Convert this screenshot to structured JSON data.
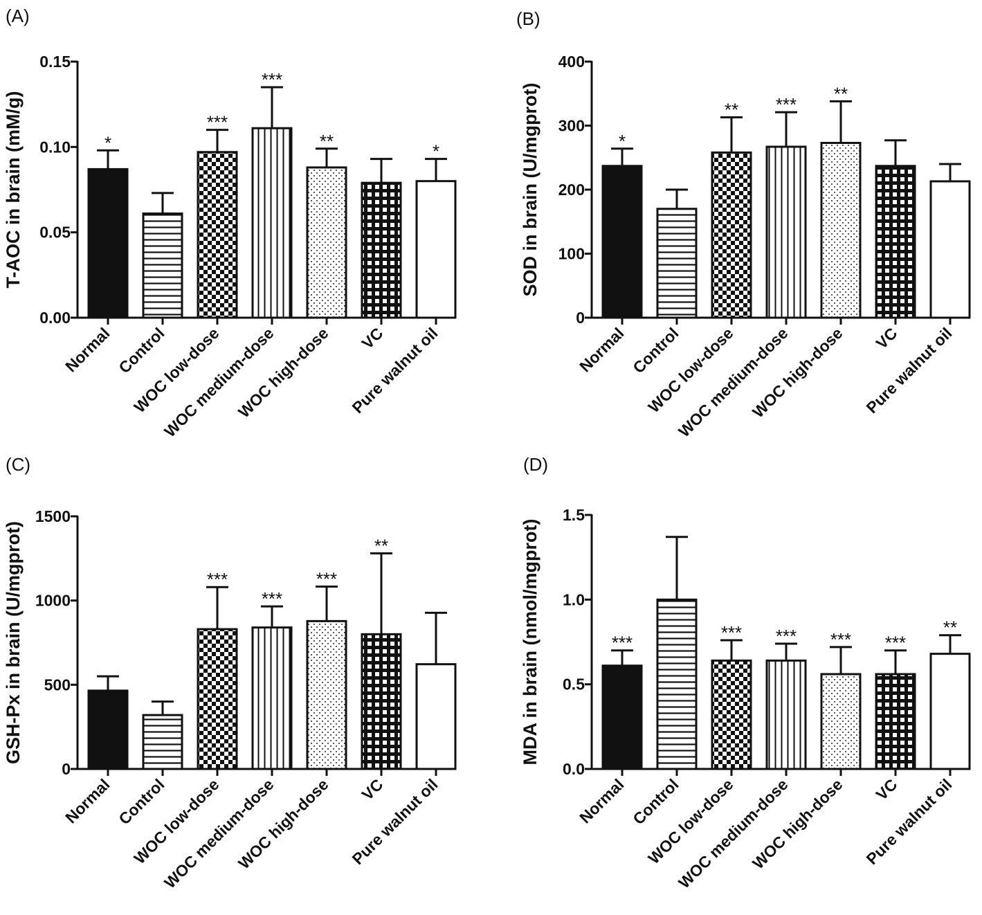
{
  "chart_data": [
    {
      "panel": "(A)",
      "type": "bar",
      "ylabel": "T-AOC in brain (mM/g)",
      "ylim": [
        0,
        0.15
      ],
      "yticks": [
        "0.00",
        "0.05",
        "0.10",
        "0.15"
      ],
      "ytick_values": [
        0,
        0.05,
        0.1,
        0.15
      ],
      "categories": [
        "Normal",
        "Control",
        "WOC low-dose",
        "WOC medium-dose",
        "WOC high-dose",
        "VC",
        "Pure walnut oil"
      ],
      "patterns": [
        "solid",
        "hlines",
        "checker",
        "vlines",
        "dots",
        "grid",
        "white"
      ],
      "values": [
        0.087,
        0.061,
        0.097,
        0.111,
        0.088,
        0.079,
        0.08
      ],
      "errors": [
        0.011,
        0.012,
        0.013,
        0.024,
        0.011,
        0.014,
        0.013
      ],
      "significance": [
        "*",
        "",
        "***",
        "***",
        "**",
        "",
        "*"
      ]
    },
    {
      "panel": "(B)",
      "type": "bar",
      "ylabel": "SOD in brain (U/mgprot)",
      "ylim": [
        0,
        400
      ],
      "yticks": [
        "0",
        "100",
        "200",
        "300",
        "400"
      ],
      "ytick_values": [
        0,
        100,
        200,
        300,
        400
      ],
      "categories": [
        "Normal",
        "Control",
        "WOC low-dose",
        "WOC medium-dose",
        "WOC high-dose",
        "VC",
        "Pure walnut oil"
      ],
      "patterns": [
        "solid",
        "hlines",
        "checker",
        "vlines",
        "dots",
        "grid",
        "white"
      ],
      "values": [
        237,
        170,
        258,
        267,
        273,
        237,
        213
      ],
      "errors": [
        27,
        30,
        55,
        54,
        65,
        40,
        27
      ],
      "significance": [
        "*",
        "",
        "**",
        "***",
        "**",
        "",
        ""
      ]
    },
    {
      "panel": "(C)",
      "type": "bar",
      "ylabel": "GSH-Px in brain (U/mgprot)",
      "ylim": [
        0,
        1500
      ],
      "yticks": [
        "0",
        "500",
        "1000",
        "1500"
      ],
      "ytick_values": [
        0,
        500,
        1000,
        1500
      ],
      "categories": [
        "Normal",
        "Control",
        "WOC low-dose",
        "WOC medium-dose",
        "WOC high-dose",
        "VC",
        "Pure walnut oil"
      ],
      "patterns": [
        "solid",
        "hlines",
        "checker",
        "vlines",
        "dots",
        "grid",
        "white"
      ],
      "values": [
        465,
        320,
        830,
        840,
        878,
        800,
        622
      ],
      "errors": [
        85,
        80,
        250,
        125,
        205,
        480,
        305
      ],
      "significance": [
        "",
        "",
        "***",
        "***",
        "***",
        "**",
        ""
      ]
    },
    {
      "panel": "(D)",
      "type": "bar",
      "ylabel": "MDA in brain (nmol/mgprot)",
      "ylim": [
        0,
        1.5
      ],
      "yticks": [
        "0.0",
        "0.5",
        "1.0",
        "1.5"
      ],
      "ytick_values": [
        0,
        0.5,
        1.0,
        1.5
      ],
      "categories": [
        "Normal",
        "Control",
        "WOC low-dose",
        "WOC medium-dose",
        "WOC high-dose",
        "VC",
        "Pure walnut oil"
      ],
      "patterns": [
        "solid",
        "hlines",
        "checker",
        "vlines",
        "dots",
        "grid",
        "white"
      ],
      "values": [
        0.61,
        1.0,
        0.64,
        0.64,
        0.56,
        0.56,
        0.68
      ],
      "errors": [
        0.09,
        0.37,
        0.12,
        0.1,
        0.16,
        0.14,
        0.11
      ],
      "significance": [
        "***",
        "",
        "***",
        "***",
        "***",
        "***",
        "**"
      ]
    }
  ]
}
